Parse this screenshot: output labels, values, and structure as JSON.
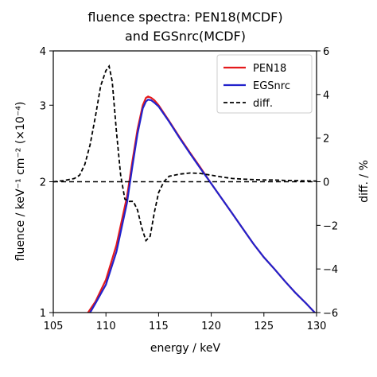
{
  "chart_data": {
    "type": "line",
    "title_lines": [
      "fluence spectra: PEN18(MCDF)",
      "and EGSnrc(MCDF)"
    ],
    "xlabel": "energy / keV",
    "ylabel_left": "fluence / keV⁻¹ cm⁻² (×10⁻⁴)",
    "ylabel_right": "diff. / %",
    "xlim": [
      105,
      130
    ],
    "ylim_left": [
      1,
      4
    ],
    "ylim_right": [
      -6,
      6
    ],
    "left_scale": "log",
    "x_ticks": [
      "105",
      "110",
      "115",
      "120",
      "125",
      "130"
    ],
    "left_ticks": [
      "1",
      "2",
      "3",
      "4"
    ],
    "right_ticks": [
      "−6",
      "−4",
      "−2",
      "0",
      "2",
      "4",
      "6"
    ],
    "legend_position": "top-right",
    "colors": {
      "pen18": "#e41a1c",
      "egsnrc": "#2222cc",
      "diff": "#000000"
    },
    "series": [
      {
        "name": "PEN18",
        "axis": "left",
        "style": "solid",
        "x": [
          108.3,
          109,
          110,
          111,
          112,
          112.5,
          113,
          113.5,
          113.8,
          114,
          114.3,
          114.6,
          115,
          116,
          117,
          118,
          119,
          120,
          121,
          122,
          123,
          124,
          125,
          126,
          127,
          128,
          129,
          130
        ],
        "y": [
          1.0,
          1.06,
          1.19,
          1.43,
          1.85,
          2.22,
          2.64,
          3.0,
          3.12,
          3.14,
          3.12,
          3.08,
          3.0,
          2.76,
          2.53,
          2.33,
          2.15,
          1.98,
          1.83,
          1.69,
          1.56,
          1.44,
          1.34,
          1.26,
          1.18,
          1.11,
          1.05,
          0.99
        ]
      },
      {
        "name": "EGSnrc",
        "axis": "left",
        "style": "solid",
        "x": [
          108.5,
          109,
          110,
          111,
          112,
          112.5,
          113,
          113.5,
          113.8,
          114,
          114.3,
          114.6,
          115,
          116,
          117,
          118,
          119,
          120,
          121,
          122,
          123,
          124,
          125,
          126,
          127,
          128,
          129,
          130
        ],
        "y": [
          1.0,
          1.05,
          1.16,
          1.38,
          1.79,
          2.16,
          2.58,
          2.95,
          3.06,
          3.09,
          3.08,
          3.04,
          2.98,
          2.75,
          2.52,
          2.32,
          2.14,
          1.98,
          1.83,
          1.69,
          1.56,
          1.44,
          1.34,
          1.26,
          1.18,
          1.11,
          1.05,
          0.99
        ]
      },
      {
        "name": "diff.",
        "axis": "right",
        "style": "dashed",
        "x": [
          105,
          106,
          107,
          107.5,
          108,
          108.5,
          109,
          109.5,
          110,
          110.3,
          110.6,
          111,
          111.4,
          111.8,
          112.2,
          112.6,
          113,
          113.4,
          113.8,
          114.2,
          114.6,
          115,
          115.5,
          116,
          117,
          118,
          119,
          120,
          121,
          122,
          123,
          124,
          125,
          126,
          127,
          128,
          129,
          130
        ],
        "y": [
          0.0,
          0.05,
          0.15,
          0.3,
          0.8,
          1.7,
          3.0,
          4.4,
          5.1,
          5.3,
          4.6,
          2.3,
          0.3,
          -0.8,
          -0.9,
          -0.9,
          -1.3,
          -2.1,
          -2.7,
          -2.5,
          -1.4,
          -0.5,
          0.0,
          0.25,
          0.35,
          0.4,
          0.38,
          0.3,
          0.22,
          0.15,
          0.12,
          0.1,
          0.08,
          0.08,
          0.06,
          0.05,
          0.04,
          0.03
        ]
      }
    ]
  }
}
